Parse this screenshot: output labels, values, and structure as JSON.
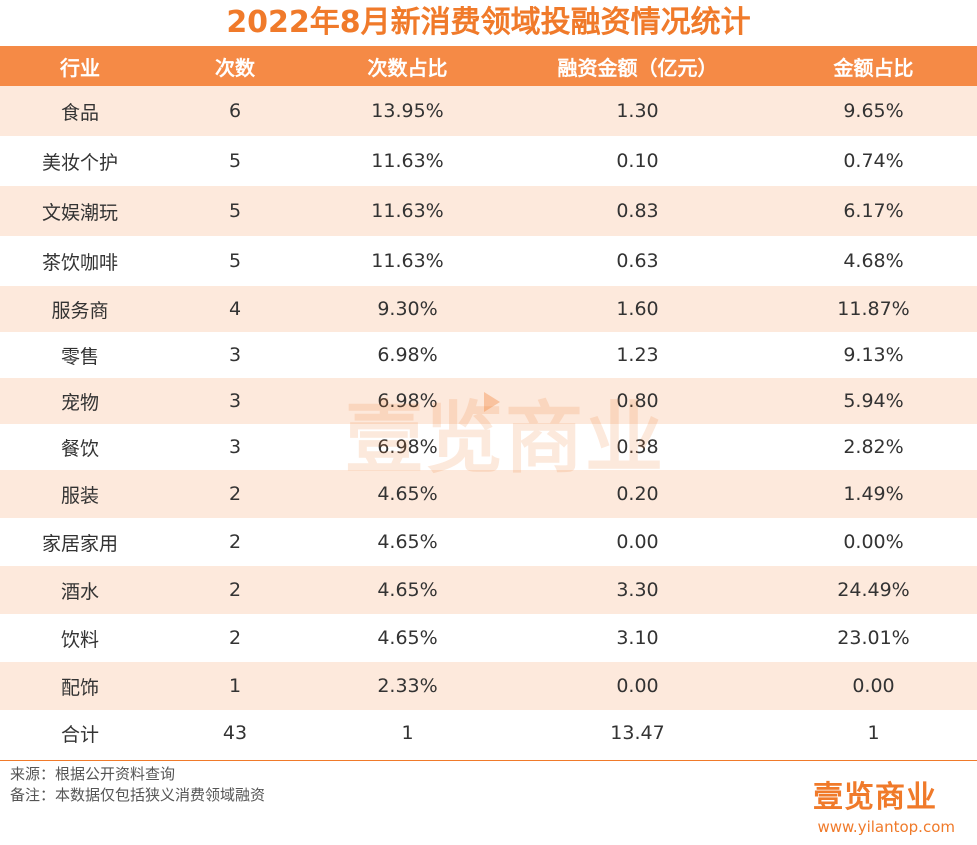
{
  "title": "2022年8月新消费领域投融资情况统计",
  "chart_data": {
    "type": "table",
    "columns": [
      "行业",
      "次数",
      "次数占比",
      "融资金额（亿元）",
      "金额占比"
    ],
    "rows": [
      [
        "食品",
        "6",
        "13.95%",
        "1.30",
        "9.65%"
      ],
      [
        "美妆个护",
        "5",
        "11.63%",
        "0.10",
        "0.74%"
      ],
      [
        "文娱潮玩",
        "5",
        "11.63%",
        "0.83",
        "6.17%"
      ],
      [
        "茶饮咖啡",
        "5",
        "11.63%",
        "0.63",
        "4.68%"
      ],
      [
        "服务商",
        "4",
        "9.30%",
        "1.60",
        "11.87%"
      ],
      [
        "零售",
        "3",
        "6.98%",
        "1.23",
        "9.13%"
      ],
      [
        "宠物",
        "3",
        "6.98%",
        "0.80",
        "5.94%"
      ],
      [
        "餐饮",
        "3",
        "6.98%",
        "0.38",
        "2.82%"
      ],
      [
        "服装",
        "2",
        "4.65%",
        "0.20",
        "1.49%"
      ],
      [
        "家居家用",
        "2",
        "4.65%",
        "0.00",
        "0.00%"
      ],
      [
        "酒水",
        "2",
        "4.65%",
        "3.30",
        "24.49%"
      ],
      [
        "饮料",
        "2",
        "4.65%",
        "3.10",
        "23.01%"
      ],
      [
        "配饰",
        "1",
        "2.33%",
        "0.00",
        "0.00"
      ],
      [
        "合计",
        "43",
        "1",
        "13.47",
        "1"
      ]
    ]
  },
  "notes": {
    "source": "来源：根据公开资料查询",
    "remark": "备注：本数据仅包括狭义消费领域融资"
  },
  "branding": {
    "logo": "壹览商业",
    "website": "www.yilantop.com",
    "watermark": "壹览商业"
  },
  "colors": {
    "accent": "#f07a2a",
    "header_bg": "#f58a46",
    "stripe_bg": "#fde9dc"
  }
}
